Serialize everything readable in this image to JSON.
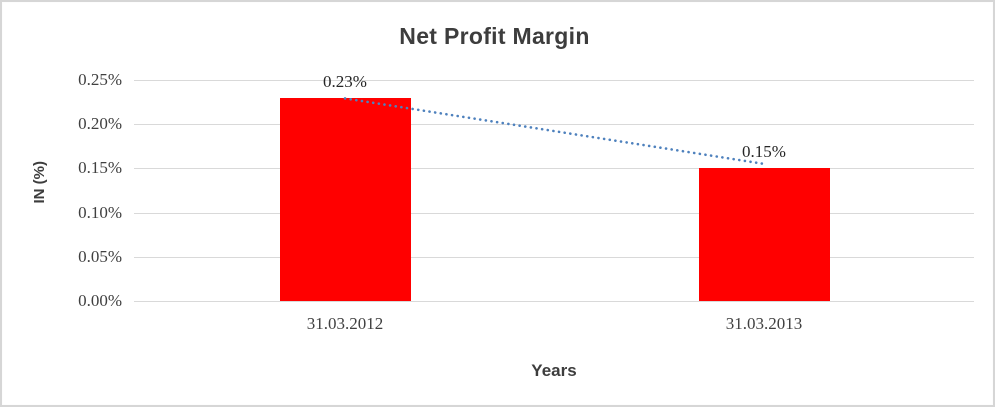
{
  "chart_data": {
    "type": "bar",
    "title": "Net Profit Margin",
    "xlabel": "Years",
    "ylabel": "IN (%)",
    "categories": [
      "31.03.2012",
      "31.03.2013"
    ],
    "values": [
      0.23,
      0.15
    ],
    "value_labels": [
      "0.23%",
      "0.15%"
    ],
    "y_ticks": [
      {
        "value": 0.25,
        "label": "0.25%"
      },
      {
        "value": 0.2,
        "label": "0.20%"
      },
      {
        "value": 0.15,
        "label": "0.15%"
      },
      {
        "value": 0.1,
        "label": "0.10%"
      },
      {
        "value": 0.05,
        "label": "0.05%"
      },
      {
        "value": 0.0,
        "label": "0.00%"
      }
    ],
    "ylim": [
      0,
      0.25
    ],
    "grid": true,
    "legend": "none",
    "trendline": {
      "style": "dotted",
      "from_value": 0.228,
      "to_value": 0.154
    },
    "colors": {
      "bar": "#ff0000",
      "trendline": "#4e81bd",
      "gridline": "#d9d9d9",
      "tick_text": "#404040",
      "title_text": "#3d3d3d",
      "frame_border": "#d6d6d6",
      "background": "#ffffff"
    }
  }
}
